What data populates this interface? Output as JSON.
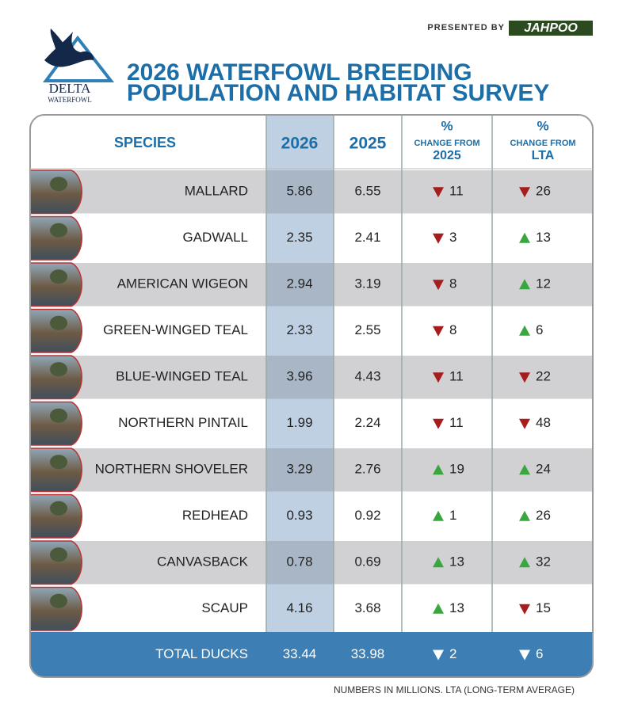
{
  "header": {
    "presented_by": "PRESENTED BY",
    "brand": "JAHPOO",
    "logo_top": "DELTA",
    "logo_bottom": "WATERFOWL",
    "title_lines": [
      "2026 WATERFOWL BREEDING",
      "POPULATION AND HABITAT SURVEY"
    ]
  },
  "table": {
    "columns": {
      "species": "SPECIES",
      "current": "2026",
      "previous": "2025",
      "change_prev": [
        "%",
        "CHANGE FROM",
        "2025"
      ],
      "change_lta": [
        "%",
        "CHANGE FROM",
        "LTA"
      ]
    },
    "rows": [
      {
        "species": "MALLARD",
        "current": "5.86",
        "previous": "6.55",
        "change_prev": {
          "text": "11",
          "dir": "down"
        },
        "change_lta": {
          "text": "26",
          "dir": "down"
        }
      },
      {
        "species": "GADWALL",
        "current": "2.35",
        "previous": "2.41",
        "change_prev": {
          "text": "3",
          "dir": "down"
        },
        "change_lta": {
          "text": "13",
          "dir": "up"
        }
      },
      {
        "species": "AMERICAN WIGEON",
        "current": "2.94",
        "previous": "3.19",
        "change_prev": {
          "text": "8",
          "dir": "down"
        },
        "change_lta": {
          "text": "12",
          "dir": "up"
        }
      },
      {
        "species": "GREEN-WINGED TEAL",
        "current": "2.33",
        "previous": "2.55",
        "change_prev": {
          "text": "8",
          "dir": "down"
        },
        "change_lta": {
          "text": "6",
          "dir": "up"
        }
      },
      {
        "species": "BLUE-WINGED TEAL",
        "current": "3.96",
        "previous": "4.43",
        "change_prev": {
          "text": "11",
          "dir": "down"
        },
        "change_lta": {
          "text": "22",
          "dir": "down"
        }
      },
      {
        "species": "NORTHERN PINTAIL",
        "current": "1.99",
        "previous": "2.24",
        "change_prev": {
          "text": "11",
          "dir": "down"
        },
        "change_lta": {
          "text": "48",
          "dir": "down"
        }
      },
      {
        "species": "NORTHERN SHOVELER",
        "current": "3.29",
        "previous": "2.76",
        "change_prev": {
          "text": "19",
          "dir": "up"
        },
        "change_lta": {
          "text": "24",
          "dir": "up"
        }
      },
      {
        "species": "REDHEAD",
        "current": "0.93",
        "previous": "0.92",
        "change_prev": {
          "text": "1",
          "dir": "up"
        },
        "change_lta": {
          "text": "26",
          "dir": "up"
        }
      },
      {
        "species": "CANVASBACK",
        "current": "0.78",
        "previous": "0.69",
        "change_prev": {
          "text": "13",
          "dir": "up"
        },
        "change_lta": {
          "text": "32",
          "dir": "up"
        }
      },
      {
        "species": "SCAUP",
        "current": "4.16",
        "previous": "3.68",
        "change_prev": {
          "text": "13",
          "dir": "up"
        },
        "change_lta": {
          "text": "15",
          "dir": "down"
        }
      }
    ],
    "total": {
      "species": "TOTAL DUCKS",
      "current": "33.44",
      "previous": "33.98",
      "change_prev": {
        "text": "2",
        "dir": "down"
      },
      "change_lta": {
        "text": "6",
        "dir": "down"
      }
    }
  },
  "footnote": "NUMBERS IN MILLIONS. LTA (LONG-TERM AVERAGE)"
}
